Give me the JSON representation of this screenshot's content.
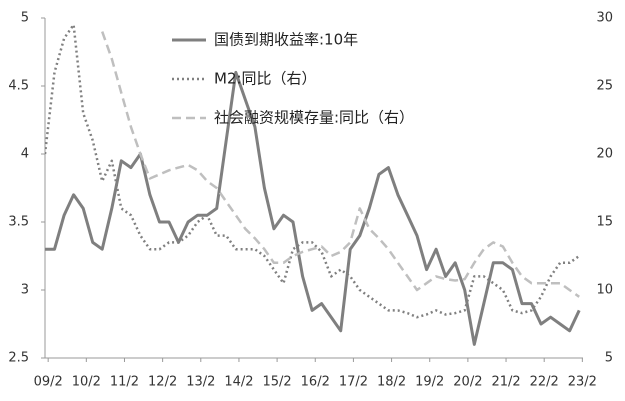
{
  "chart_data": {
    "type": "line",
    "x": [
      2009.0,
      2009.25,
      2009.5,
      2009.75,
      2010.0,
      2010.25,
      2010.5,
      2010.75,
      2011.0,
      2011.25,
      2011.5,
      2011.75,
      2012.0,
      2012.25,
      2012.5,
      2012.75,
      2013.0,
      2013.25,
      2013.5,
      2013.75,
      2014.0,
      2014.25,
      2014.5,
      2014.75,
      2015.0,
      2015.25,
      2015.5,
      2015.75,
      2016.0,
      2016.25,
      2016.5,
      2016.75,
      2017.0,
      2017.25,
      2017.5,
      2017.75,
      2018.0,
      2018.25,
      2018.5,
      2018.75,
      2019.0,
      2019.25,
      2019.5,
      2019.75,
      2020.0,
      2020.25,
      2020.5,
      2020.75,
      2021.0,
      2021.25,
      2021.5,
      2021.75,
      2022.0,
      2022.25,
      2022.5,
      2022.75,
      2023.0
    ],
    "series": [
      {
        "name": "国债到期收益率:10年",
        "color": "#7f7f7f",
        "style": "solid",
        "values": [
          3.3,
          3.3,
          3.55,
          3.7,
          3.6,
          3.35,
          3.3,
          3.6,
          3.95,
          3.9,
          4.0,
          3.7,
          3.5,
          3.5,
          3.35,
          3.5,
          3.55,
          3.55,
          3.6,
          4.1,
          4.6,
          4.4,
          4.2,
          3.75,
          3.45,
          3.55,
          3.5,
          3.1,
          2.85,
          2.9,
          2.8,
          2.7,
          3.3,
          3.4,
          3.6,
          3.85,
          3.9,
          3.7,
          3.55,
          3.4,
          3.15,
          3.3,
          3.1,
          3.2,
          3.0,
          2.6,
          2.9,
          3.2,
          3.2,
          3.15,
          2.9,
          2.9,
          2.75,
          2.8,
          2.75,
          2.7,
          2.85
        ]
      },
      {
        "name": "M2:同比（右）",
        "color": "#808080",
        "style": "dotted",
        "axis": "y2",
        "values": [
          20,
          26,
          28.5,
          29.5,
          23,
          21,
          18,
          19.5,
          16,
          15.5,
          14,
          13,
          13,
          13.5,
          13.5,
          14,
          15,
          15.5,
          14,
          14,
          13,
          13,
          13,
          12.5,
          11.5,
          10.5,
          13,
          13.5,
          13.5,
          12.8,
          11,
          11.5,
          11,
          10,
          9.5,
          9,
          8.5,
          8.5,
          8.3,
          8,
          8.2,
          8.5,
          8.2,
          8.3,
          8.5,
          11,
          11,
          10.5,
          10,
          8.5,
          8.3,
          8.5,
          9.5,
          11,
          12,
          12,
          12.5
        ]
      },
      {
        "name": "社会融资规模存量:同比（右）",
        "color": "#bfbfbf",
        "style": "dashed",
        "axis": "y2",
        "values": [
          null,
          null,
          null,
          null,
          null,
          null,
          29,
          27,
          24.5,
          22,
          20,
          18.2,
          18.5,
          18.8,
          19,
          19.2,
          18.8,
          18,
          17.5,
          16.5,
          15.5,
          14.5,
          13.8,
          13,
          12,
          12,
          12.5,
          12.8,
          13,
          13.2,
          12.5,
          12.8,
          13.5,
          16,
          14.5,
          13.8,
          13,
          12,
          11,
          10,
          10.5,
          11,
          10.8,
          10.7,
          10.8,
          12,
          13,
          13.5,
          13.2,
          12,
          11,
          10.5,
          10.5,
          10.5,
          10.5,
          10,
          9.5
        ]
      }
    ],
    "xlim": [
      2009.0,
      2023.1
    ],
    "xticks": [
      {
        "value": 2009.083,
        "label": "09/2"
      },
      {
        "value": 2010.083,
        "label": "10/2"
      },
      {
        "value": 2011.083,
        "label": "11/2"
      },
      {
        "value": 2012.083,
        "label": "12/2"
      },
      {
        "value": 2013.083,
        "label": "13/2"
      },
      {
        "value": 2014.083,
        "label": "14/2"
      },
      {
        "value": 2015.083,
        "label": "15/2"
      },
      {
        "value": 2016.083,
        "label": "16/2"
      },
      {
        "value": 2017.083,
        "label": "17/2"
      },
      {
        "value": 2018.083,
        "label": "18/2"
      },
      {
        "value": 2019.083,
        "label": "19/2"
      },
      {
        "value": 2020.083,
        "label": "20/2"
      },
      {
        "value": 2021.083,
        "label": "21/2"
      },
      {
        "value": 2022.083,
        "label": "22/2"
      },
      {
        "value": 2023.083,
        "label": "23/2"
      }
    ],
    "ylim": [
      2.5,
      5
    ],
    "yticks": [
      2.5,
      3,
      3.5,
      4,
      4.5,
      5
    ],
    "y2lim": [
      5,
      30
    ],
    "y2ticks": [
      5,
      10,
      15,
      20,
      25,
      30
    ],
    "grid": false
  }
}
